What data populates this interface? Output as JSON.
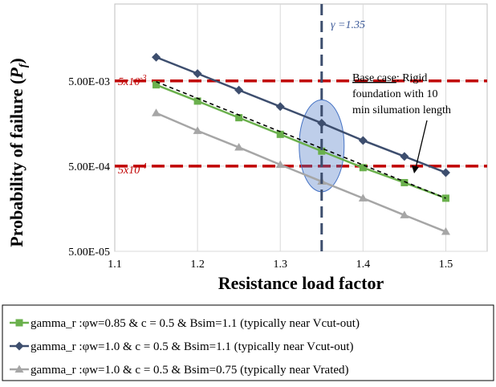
{
  "chart_data": {
    "type": "line",
    "xlabel": "Resistance load factor",
    "ylabel_main": "Probability of failure (",
    "ylabel_sym": "P",
    "ylabel_sub": "f",
    "ylabel_close": ")",
    "yscale": "log",
    "xlim": [
      1.1,
      1.55
    ],
    "ylim": [
      5e-05,
      0.04
    ],
    "x_ticks": [
      1.1,
      1.2,
      1.3,
      1.4,
      1.5
    ],
    "x_tick_labels": [
      "1.1",
      "1.2",
      "1.3",
      "1.4",
      "1.5"
    ],
    "y_ticks": [
      5e-05,
      0.0005,
      0.005
    ],
    "y_tick_labels": [
      "5.00E-05",
      "5.00E-04",
      "5.00E-03"
    ],
    "grid": true,
    "legend_position": "bottom",
    "series": [
      {
        "name": "gamma_r :φw=0.85 & c = 0.5 & Bsim=1.1 (typically near Vcut-out)",
        "color": "#6ab04c",
        "marker": "square",
        "x": [
          1.15,
          1.2,
          1.25,
          1.3,
          1.35,
          1.4,
          1.45,
          1.5
        ],
        "y": [
          0.0045,
          0.0029,
          0.00185,
          0.00118,
          0.00075,
          0.00048,
          0.00032,
          0.00021
        ]
      },
      {
        "name": "gamma_r :φw=1.0 & c = 0.5 & Bsim=1.1 (typically near Vcut-out)",
        "color": "#3d4e6e",
        "marker": "diamond",
        "x": [
          1.15,
          1.2,
          1.25,
          1.3,
          1.35,
          1.4,
          1.45,
          1.5
        ],
        "y": [
          0.0095,
          0.0061,
          0.0039,
          0.0025,
          0.0016,
          0.001,
          0.00065,
          0.00042
        ]
      },
      {
        "name": "gamma_r :φw=1.0 & c = 0.5 & Bsim=0.75 (typically near Vrated)",
        "color": "#a6a6a6",
        "marker": "triangle",
        "x": [
          1.15,
          1.2,
          1.25,
          1.3,
          1.35,
          1.4,
          1.45,
          1.5
        ],
        "y": [
          0.0021,
          0.0013,
          0.00083,
          0.00052,
          0.00033,
          0.00021,
          0.000133,
          8.5e-05
        ]
      }
    ],
    "base_case_line": {
      "x": [
        1.15,
        1.5
      ],
      "y": [
        0.0049,
        0.00021
      ],
      "color": "#000000",
      "style": "dashed"
    },
    "reference_lines": [
      {
        "value": 0.005,
        "label_base": "5x10",
        "label_exp": "-3",
        "color": "#c00000"
      },
      {
        "value": 0.0005,
        "label_base": "5x10",
        "label_exp": "-4",
        "color": "#c00000"
      }
    ],
    "vertical_line": {
      "x": 1.35,
      "label": "γ =1.35",
      "color": "#3d4e6e"
    },
    "highlight_ellipse": {
      "x": 1.35,
      "y_low": 0.00025,
      "y_high": 0.003,
      "color": "#4472c4"
    },
    "annotation": {
      "underlined": "Base case",
      "rest_line1": ": Rigid",
      "line2": "foundation with 10",
      "line3": "min silumation length"
    }
  }
}
